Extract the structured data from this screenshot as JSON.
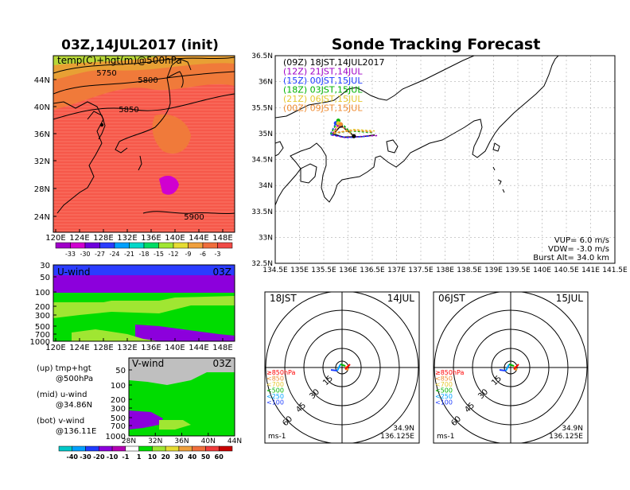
{
  "left_title": "03Z,14JUL2017 (init)",
  "right_title": "Sonde Tracking Forecast",
  "map500": {
    "label": "temp(C)+hgt(m)@500hPa",
    "contours": [
      "5750",
      "5800",
      "5850",
      "5900"
    ],
    "lat_ticks": [
      "44N",
      "40N",
      "36N",
      "32N",
      "28N",
      "24N"
    ],
    "lon_ticks": [
      "120E",
      "124E",
      "128E",
      "132E",
      "136E",
      "140E",
      "144E",
      "148E"
    ],
    "colorbar_ticks": [
      "-33",
      "-30",
      "-27",
      "-24",
      "-21",
      "-18",
      "-15",
      "-12",
      "-9",
      "-6",
      "-3"
    ],
    "colorbar_colors": [
      "#a000c8",
      "#d000d0",
      "#6e00dc",
      "#2a3cff",
      "#00a0ff",
      "#00d7c8",
      "#00dc64",
      "#a0e632",
      "#e6dc32",
      "#f0a03c",
      "#f06e3c",
      "#f04a46"
    ]
  },
  "uwind": {
    "title": "U-wind",
    "time": "03Z",
    "p_ticks": [
      "30",
      "50",
      "100",
      "200",
      "300",
      "500",
      "700",
      "1000"
    ],
    "lon_ticks": [
      "120E",
      "124E",
      "128E",
      "132E",
      "136E",
      "140E",
      "144E",
      "148E"
    ]
  },
  "vwind": {
    "title": "V-wind",
    "time": "03Z",
    "p_ticks": [
      "50",
      "100",
      "200",
      "300",
      "500",
      "700",
      "1000"
    ],
    "lat_ticks": [
      "28N",
      "32N",
      "36N",
      "40N",
      "44N"
    ]
  },
  "legend_text": {
    "up_line1": "(up) tmp+hgt",
    "up_line2": "@500hPa",
    "mid_line1": "(mid) u-wind",
    "mid_line2": "@34.86N",
    "bot_line1": "(bot) v-wind",
    "bot_line2": "@136.11E"
  },
  "wind_colorbar_ticks": [
    "-40",
    "-30",
    "-20",
    "-10",
    "-1",
    "1",
    "10",
    "20",
    "30",
    "40",
    "50",
    "60"
  ],
  "wind_colorbar_colors": [
    "#00c8c8",
    "#00a0ff",
    "#1e3cff",
    "#8c00dc",
    "#b400b4",
    "#ffffff",
    "#00dc00",
    "#a0e632",
    "#e6dc32",
    "#f0a03c",
    "#f06e3c",
    "#f03c3c",
    "#c80000"
  ],
  "track_map": {
    "launches": [
      {
        "label": "(09Z)  18JST,14JUL2017",
        "color": "#000000"
      },
      {
        "label": "(12Z)  21JST,14JUL",
        "color": "#a000c8"
      },
      {
        "label": "(15Z)  00JST,15JUL",
        "color": "#1e3cff"
      },
      {
        "label": "(18Z)  03JST,15JUL",
        "color": "#00b400"
      },
      {
        "label": "(21Z)  06JST,15JUL",
        "color": "#e6c832"
      },
      {
        "label": "(00Z)  09JST,15JUL",
        "color": "#f08c32"
      }
    ],
    "lat_ticks": [
      "36.5N",
      "36N",
      "35.5N",
      "35N",
      "34.5N",
      "34N",
      "33.5N",
      "33N",
      "32.5N"
    ],
    "lon_ticks": [
      "134.5E",
      "135E",
      "135.5E",
      "136E",
      "136.5E",
      "137E",
      "137.5E",
      "138E",
      "138.5E",
      "139E",
      "139.5E",
      "140E",
      "140.5E",
      "141E",
      "141.5E"
    ],
    "vup": "VUP=  6.0  m/s",
    "vdw": "VDW= -3.0  m/s",
    "burst": "Burst Alt=  34.0  km"
  },
  "hodo_left": {
    "time": "18JST",
    "date": "14JUL",
    "ring_labels": [
      "15",
      "30",
      "45",
      "60"
    ],
    "level_labels": [
      "≥850hPa",
      "<850",
      "<700",
      "<500",
      "<250",
      "<100"
    ],
    "level_colors": [
      "#ff0000",
      "#f08c32",
      "#e6c832",
      "#00b400",
      "#00a0ff",
      "#1e3cff"
    ],
    "unit": "ms-1",
    "lat": "34.9N",
    "lon": "136.125E"
  },
  "hodo_right": {
    "time": "06JST",
    "date": "15JUL",
    "ring_labels": [
      "15",
      "30",
      "45",
      "60"
    ],
    "level_labels": [
      "≥850hPa",
      "<850",
      "<700",
      "<500",
      "<250",
      "<100"
    ],
    "level_colors": [
      "#ff0000",
      "#f08c32",
      "#e6c832",
      "#00b400",
      "#00a0ff",
      "#1e3cff"
    ],
    "unit": "ms-1",
    "lat": "34.9N",
    "lon": "136.125E"
  },
  "chart_data": [
    {
      "type": "heatmap",
      "title": "temp(C)+hgt(m)@500hPa",
      "xlim": [
        120,
        150
      ],
      "ylim": [
        22,
        47
      ],
      "contour_levels": [
        5750,
        5800,
        5850,
        5900
      ],
      "color_levels": [
        -33,
        -30,
        -27,
        -24,
        -21,
        -18,
        -15,
        -12,
        -9,
        -6,
        -3
      ]
    },
    {
      "type": "heatmap",
      "title": "U-wind",
      "xlim": [
        120,
        150
      ],
      "yaxis": "pressure (log)",
      "ylim": [
        1000,
        30
      ]
    },
    {
      "type": "heatmap",
      "title": "V-wind",
      "xlim": [
        28,
        44
      ],
      "yaxis": "pressure (log)",
      "ylim": [
        1000,
        30
      ]
    },
    {
      "type": "line",
      "title": "Sonde Tracking Forecast",
      "xlim": [
        134.5,
        141.5
      ],
      "ylim": [
        32.5,
        36.5
      ],
      "launch_point": [
        136.12,
        34.95
      ],
      "series": [
        {
          "name": "(09Z)  18JST,14JUL2017",
          "points": [
            [
              136.12,
              34.95
            ],
            [
              136.0,
              35.05
            ],
            [
              135.85,
              35.15
            ],
            [
              135.7,
              34.99
            ],
            [
              135.9,
              34.93
            ],
            [
              136.3,
              34.94
            ],
            [
              136.55,
              34.97
            ]
          ]
        },
        {
          "name": "(12Z)  21JST,14JUL",
          "points": [
            [
              136.12,
              34.95
            ],
            [
              135.98,
              35.08
            ],
            [
              135.8,
              35.17
            ],
            [
              135.66,
              34.97
            ],
            [
              135.95,
              34.92
            ],
            [
              136.35,
              34.95
            ],
            [
              136.6,
              34.96
            ]
          ]
        },
        {
          "name": "(15Z)  00JST,15JUL",
          "points": [
            [
              136.12,
              34.95
            ],
            [
              135.95,
              35.1
            ],
            [
              135.75,
              35.2
            ],
            [
              135.63,
              34.98
            ],
            [
              136.0,
              34.92
            ],
            [
              136.45,
              34.95
            ]
          ]
        },
        {
          "name": "(18Z)  03JST,15JUL",
          "points": [
            [
              136.12,
              34.95
            ],
            [
              135.92,
              35.15
            ],
            [
              135.8,
              35.25
            ],
            [
              135.65,
              35.0
            ],
            [
              136.05,
              35.05
            ],
            [
              136.5,
              35.02
            ]
          ]
        },
        {
          "name": "(21Z)  06JST,15JUL",
          "points": [
            [
              136.12,
              34.95
            ],
            [
              135.9,
              35.12
            ],
            [
              135.8,
              35.2
            ],
            [
              135.7,
              35.0
            ],
            [
              136.1,
              35.08
            ],
            [
              136.55,
              35.05
            ]
          ]
        },
        {
          "name": "(00Z)  09JST,15JUL",
          "points": [
            [
              136.12,
              34.95
            ],
            [
              135.92,
              35.1
            ],
            [
              135.85,
              35.18
            ],
            [
              135.72,
              35.02
            ],
            [
              136.15,
              35.06
            ],
            [
              136.5,
              35.03
            ]
          ]
        }
      ]
    }
  ]
}
